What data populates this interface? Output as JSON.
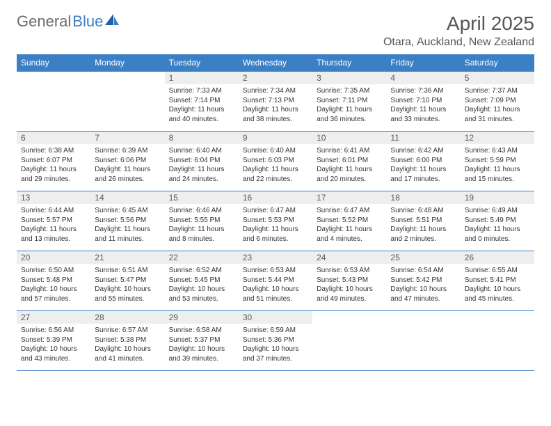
{
  "brand": {
    "part1": "General",
    "part2": "Blue"
  },
  "colors": {
    "accent": "#3b7fc4",
    "header_text": "#ffffff",
    "daynum_bg": "#eeeeee",
    "daynum_text": "#595959",
    "body_text": "#333333",
    "title_text": "#555555"
  },
  "title": {
    "month": "April 2025",
    "location": "Otara, Auckland, New Zealand"
  },
  "weekdays": [
    "Sunday",
    "Monday",
    "Tuesday",
    "Wednesday",
    "Thursday",
    "Friday",
    "Saturday"
  ],
  "labels": {
    "sunrise": "Sunrise:",
    "sunset": "Sunset:",
    "daylight": "Daylight:"
  },
  "weeks": [
    [
      null,
      null,
      {
        "n": "1",
        "sr": "7:33 AM",
        "ss": "7:14 PM",
        "dl": "11 hours and 40 minutes."
      },
      {
        "n": "2",
        "sr": "7:34 AM",
        "ss": "7:13 PM",
        "dl": "11 hours and 38 minutes."
      },
      {
        "n": "3",
        "sr": "7:35 AM",
        "ss": "7:11 PM",
        "dl": "11 hours and 36 minutes."
      },
      {
        "n": "4",
        "sr": "7:36 AM",
        "ss": "7:10 PM",
        "dl": "11 hours and 33 minutes."
      },
      {
        "n": "5",
        "sr": "7:37 AM",
        "ss": "7:09 PM",
        "dl": "11 hours and 31 minutes."
      }
    ],
    [
      {
        "n": "6",
        "sr": "6:38 AM",
        "ss": "6:07 PM",
        "dl": "11 hours and 29 minutes."
      },
      {
        "n": "7",
        "sr": "6:39 AM",
        "ss": "6:06 PM",
        "dl": "11 hours and 26 minutes."
      },
      {
        "n": "8",
        "sr": "6:40 AM",
        "ss": "6:04 PM",
        "dl": "11 hours and 24 minutes."
      },
      {
        "n": "9",
        "sr": "6:40 AM",
        "ss": "6:03 PM",
        "dl": "11 hours and 22 minutes."
      },
      {
        "n": "10",
        "sr": "6:41 AM",
        "ss": "6:01 PM",
        "dl": "11 hours and 20 minutes."
      },
      {
        "n": "11",
        "sr": "6:42 AM",
        "ss": "6:00 PM",
        "dl": "11 hours and 17 minutes."
      },
      {
        "n": "12",
        "sr": "6:43 AM",
        "ss": "5:59 PM",
        "dl": "11 hours and 15 minutes."
      }
    ],
    [
      {
        "n": "13",
        "sr": "6:44 AM",
        "ss": "5:57 PM",
        "dl": "11 hours and 13 minutes."
      },
      {
        "n": "14",
        "sr": "6:45 AM",
        "ss": "5:56 PM",
        "dl": "11 hours and 11 minutes."
      },
      {
        "n": "15",
        "sr": "6:46 AM",
        "ss": "5:55 PM",
        "dl": "11 hours and 8 minutes."
      },
      {
        "n": "16",
        "sr": "6:47 AM",
        "ss": "5:53 PM",
        "dl": "11 hours and 6 minutes."
      },
      {
        "n": "17",
        "sr": "6:47 AM",
        "ss": "5:52 PM",
        "dl": "11 hours and 4 minutes."
      },
      {
        "n": "18",
        "sr": "6:48 AM",
        "ss": "5:51 PM",
        "dl": "11 hours and 2 minutes."
      },
      {
        "n": "19",
        "sr": "6:49 AM",
        "ss": "5:49 PM",
        "dl": "11 hours and 0 minutes."
      }
    ],
    [
      {
        "n": "20",
        "sr": "6:50 AM",
        "ss": "5:48 PM",
        "dl": "10 hours and 57 minutes."
      },
      {
        "n": "21",
        "sr": "6:51 AM",
        "ss": "5:47 PM",
        "dl": "10 hours and 55 minutes."
      },
      {
        "n": "22",
        "sr": "6:52 AM",
        "ss": "5:45 PM",
        "dl": "10 hours and 53 minutes."
      },
      {
        "n": "23",
        "sr": "6:53 AM",
        "ss": "5:44 PM",
        "dl": "10 hours and 51 minutes."
      },
      {
        "n": "24",
        "sr": "6:53 AM",
        "ss": "5:43 PM",
        "dl": "10 hours and 49 minutes."
      },
      {
        "n": "25",
        "sr": "6:54 AM",
        "ss": "5:42 PM",
        "dl": "10 hours and 47 minutes."
      },
      {
        "n": "26",
        "sr": "6:55 AM",
        "ss": "5:41 PM",
        "dl": "10 hours and 45 minutes."
      }
    ],
    [
      {
        "n": "27",
        "sr": "6:56 AM",
        "ss": "5:39 PM",
        "dl": "10 hours and 43 minutes."
      },
      {
        "n": "28",
        "sr": "6:57 AM",
        "ss": "5:38 PM",
        "dl": "10 hours and 41 minutes."
      },
      {
        "n": "29",
        "sr": "6:58 AM",
        "ss": "5:37 PM",
        "dl": "10 hours and 39 minutes."
      },
      {
        "n": "30",
        "sr": "6:59 AM",
        "ss": "5:36 PM",
        "dl": "10 hours and 37 minutes."
      },
      null,
      null,
      null
    ]
  ]
}
